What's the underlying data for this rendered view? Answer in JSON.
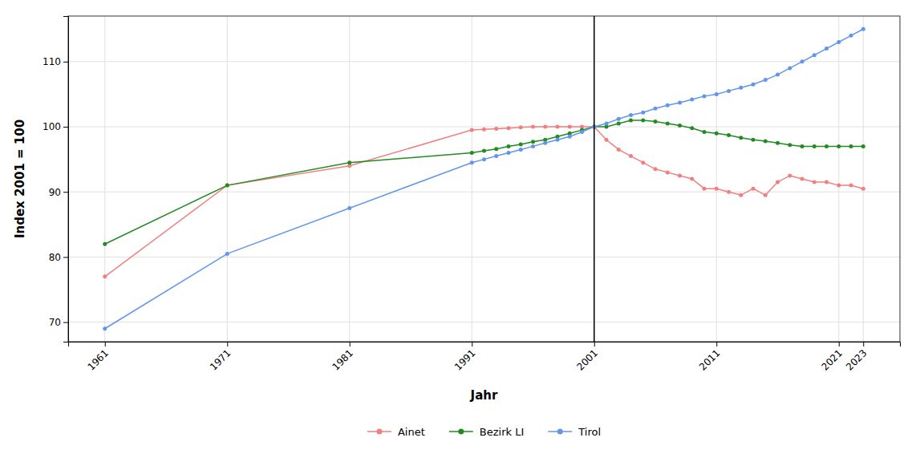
{
  "chart_data": {
    "type": "line",
    "xlabel": "Jahr",
    "ylabel": "Index 2001 = 100",
    "x": [
      1961,
      1971,
      1981,
      1991,
      1992,
      1993,
      1994,
      1995,
      1996,
      1997,
      1998,
      1999,
      2000,
      2001,
      2002,
      2003,
      2004,
      2005,
      2006,
      2007,
      2008,
      2009,
      2010,
      2011,
      2012,
      2013,
      2014,
      2015,
      2016,
      2017,
      2018,
      2019,
      2020,
      2021,
      2022,
      2023
    ],
    "series": [
      {
        "name": "Ainet",
        "color": "#f08080",
        "marker": "circle",
        "values": [
          77.0,
          91.0,
          94.0,
          99.5,
          99.6,
          99.7,
          99.8,
          99.9,
          100.0,
          100.0,
          100.0,
          100.0,
          100.0,
          100.0,
          98.0,
          96.5,
          95.5,
          94.5,
          93.5,
          93.0,
          92.5,
          92.0,
          90.5,
          90.5,
          90.0,
          89.5,
          90.5,
          89.5,
          91.5,
          92.5,
          92.0,
          91.5,
          91.5,
          91.0,
          91.0,
          90.5
        ]
      },
      {
        "name": "Bezirk LI",
        "color": "#228B22",
        "marker": "circle",
        "values": [
          82.0,
          91.0,
          94.5,
          96.0,
          96.3,
          96.6,
          97.0,
          97.3,
          97.7,
          98.0,
          98.5,
          99.0,
          99.5,
          100.0,
          100.0,
          100.5,
          101.0,
          101.0,
          100.8,
          100.5,
          100.2,
          99.8,
          99.2,
          99.0,
          98.7,
          98.3,
          98.0,
          97.8,
          97.5,
          97.2,
          97.0,
          97.0,
          97.0,
          97.0,
          97.0,
          97.0
        ]
      },
      {
        "name": "Tirol",
        "color": "#6495ED",
        "marker": "circle",
        "values": [
          69.0,
          80.5,
          87.5,
          94.5,
          95.0,
          95.5,
          96.0,
          96.5,
          97.0,
          97.5,
          98.0,
          98.5,
          99.2,
          100.0,
          100.5,
          101.2,
          101.8,
          102.2,
          102.8,
          103.3,
          103.7,
          104.2,
          104.7,
          105.0,
          105.5,
          106.0,
          106.5,
          107.2,
          108.0,
          109.0,
          110.0,
          111.0,
          112.0,
          113.0,
          114.0,
          115.0
        ]
      }
    ],
    "vline_x": 2001,
    "xlim": [
      1958,
      2026
    ],
    "xticks": [
      1961,
      1971,
      1981,
      1991,
      2001,
      2011,
      2021,
      2023
    ],
    "ylim": [
      67,
      117
    ],
    "yticks": [
      70,
      80,
      90,
      100,
      110
    ],
    "grid": true,
    "legend": "bottom"
  }
}
